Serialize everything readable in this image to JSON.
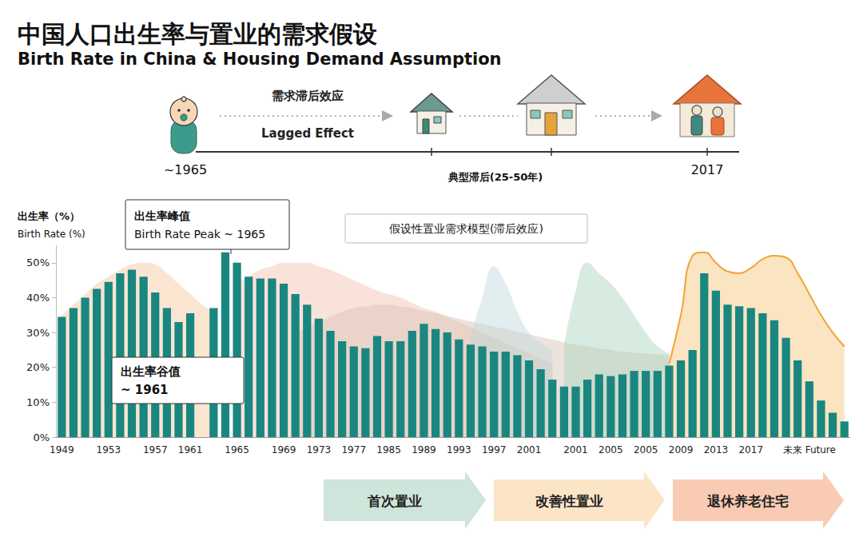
{
  "chart_data": {
    "type": "bar",
    "title": "中国人口出生率与置业的需求假设",
    "subtitle": "Birth Rate in China & Housing Demand Assumption",
    "ylabel": [
      "出生率（%）",
      "Birth Rate (%)"
    ],
    "categories": [
      "1949",
      null,
      null,
      null,
      "1953",
      null,
      null,
      null,
      "1957",
      null,
      null,
      "1961",
      null,
      null,
      null,
      "1965",
      null,
      null,
      null,
      "1969",
      null,
      null,
      "1973",
      null,
      null,
      "1977",
      null,
      null,
      "1985",
      null,
      null,
      "1989",
      null,
      null,
      "1993",
      null,
      null,
      "1997",
      null,
      null,
      "2001",
      null,
      null,
      null,
      "2001",
      null,
      null,
      "2005",
      null,
      null,
      "2005",
      null,
      null,
      "2009",
      null,
      null,
      "2013",
      null,
      null,
      "2017",
      null,
      null,
      null,
      null,
      "未来 Future",
      null,
      null,
      null
    ],
    "series": [
      {
        "type": "area",
        "color": "#f3c69a",
        "line_style": "none",
        "values": [
          35,
          38,
          41,
          44,
          46,
          48,
          49.5,
          50,
          49.5,
          47,
          44,
          41,
          38,
          36,
          null,
          null,
          null,
          null,
          null,
          null,
          null,
          null,
          null,
          null,
          null,
          null,
          null,
          null,
          null,
          null,
          null,
          null,
          null,
          null,
          null,
          null,
          null,
          null,
          null,
          null,
          null,
          null,
          null,
          null,
          null,
          null,
          null,
          null,
          null,
          null,
          null,
          null,
          null,
          null,
          null,
          null,
          null,
          null,
          null,
          null,
          null,
          null,
          null,
          null,
          null,
          null,
          null,
          null
        ]
      },
      {
        "type": "area",
        "color": "#f2bfae",
        "line_style": "none",
        "values": [
          null,
          null,
          null,
          null,
          null,
          null,
          null,
          null,
          null,
          null,
          null,
          null,
          null,
          null,
          null,
          44,
          46,
          48,
          49,
          50,
          50,
          50,
          49,
          48,
          46.5,
          45,
          43.5,
          42,
          41,
          40,
          38.5,
          37,
          36,
          34.5,
          33,
          31.5,
          30,
          28.5,
          27,
          25.5,
          24,
          22.5,
          21,
          null,
          null,
          null,
          null,
          null,
          null,
          null,
          null,
          null,
          null,
          null,
          null,
          null,
          null,
          null,
          null,
          null,
          null,
          null,
          null,
          null,
          null,
          null,
          null,
          null
        ]
      },
      {
        "type": "area",
        "color": "#d7c0b4",
        "line_style": "none",
        "values": [
          null,
          null,
          null,
          null,
          null,
          null,
          null,
          null,
          null,
          null,
          null,
          null,
          null,
          null,
          null,
          null,
          null,
          null,
          null,
          null,
          30,
          31.5,
          33,
          34.5,
          36,
          37,
          37.5,
          38,
          38,
          37.5,
          37,
          36.2,
          35.5,
          34.7,
          34,
          33.2,
          32.5,
          31.7,
          31,
          30.2,
          29.5,
          28.7,
          28,
          27.2,
          26.5,
          26,
          25.5,
          25,
          24.5,
          24.2,
          24,
          23.7,
          23.5,
          null,
          null,
          null,
          null,
          null,
          null,
          null,
          null,
          null,
          null,
          null,
          null,
          null,
          null,
          null
        ]
      },
      {
        "type": "area",
        "color": "#bcd6da",
        "line_style": "none",
        "values": [
          null,
          null,
          null,
          null,
          null,
          null,
          null,
          null,
          null,
          null,
          null,
          null,
          null,
          null,
          null,
          null,
          null,
          null,
          null,
          null,
          null,
          null,
          null,
          null,
          null,
          null,
          null,
          null,
          null,
          null,
          null,
          null,
          null,
          null,
          null,
          29,
          40,
          49,
          44,
          36,
          30,
          27,
          25,
          null,
          null,
          null,
          null,
          null,
          null,
          null,
          null,
          null,
          null,
          null,
          null,
          null,
          null,
          null,
          null,
          null,
          null,
          null,
          null,
          null,
          null,
          null,
          null,
          null
        ]
      },
      {
        "type": "area",
        "color": "#a9d3bb",
        "line_style": "none",
        "values": [
          null,
          null,
          null,
          null,
          null,
          null,
          null,
          null,
          null,
          null,
          null,
          null,
          null,
          null,
          null,
          null,
          null,
          null,
          null,
          null,
          null,
          null,
          null,
          null,
          null,
          null,
          null,
          null,
          null,
          null,
          null,
          null,
          null,
          null,
          null,
          null,
          null,
          null,
          null,
          null,
          null,
          null,
          null,
          26,
          42,
          50,
          47,
          44,
          40,
          35,
          30,
          26,
          24,
          null,
          null,
          null,
          null,
          null,
          null,
          null,
          null,
          null,
          null,
          null,
          null,
          null,
          null,
          null
        ]
      },
      {
        "type": "area",
        "color": "#f0a534",
        "line_style": "solid",
        "values": [
          null,
          null,
          null,
          null,
          null,
          null,
          null,
          null,
          null,
          null,
          null,
          null,
          null,
          null,
          null,
          null,
          null,
          null,
          null,
          null,
          null,
          null,
          null,
          null,
          null,
          null,
          null,
          null,
          null,
          null,
          null,
          null,
          null,
          null,
          null,
          null,
          null,
          null,
          null,
          null,
          null,
          null,
          null,
          null,
          null,
          null,
          null,
          null,
          null,
          null,
          null,
          null,
          21,
          35,
          52,
          53,
          50,
          47.5,
          47,
          48.5,
          51,
          52,
          51.5,
          47,
          41,
          35,
          30,
          26
        ]
      },
      {
        "type": "bar",
        "color": "#1a8680",
        "values": [
          34.5,
          37,
          40,
          42.5,
          44.5,
          47,
          48,
          46,
          41.5,
          37,
          33,
          35.5,
          null,
          37,
          53,
          50,
          46,
          45.5,
          45.5,
          44,
          41,
          38,
          34,
          30.5,
          27.5,
          26,
          25.5,
          29,
          27.5,
          27.5,
          30.5,
          32.5,
          31,
          30,
          28,
          26.5,
          26,
          24.5,
          24.5,
          23.5,
          22,
          19.5,
          16.5,
          14.5,
          14.5,
          16.5,
          18,
          17.5,
          18,
          19,
          19,
          19,
          20.5,
          22,
          25,
          47,
          42,
          38,
          37.5,
          37,
          35.5,
          33.5,
          28.5,
          22,
          16,
          10.5,
          7,
          4.5
        ]
      }
    ],
    "ylim": [
      0,
      55
    ],
    "yticks": [
      {
        "value": 0,
        "label": "0%"
      },
      {
        "value": 10,
        "label": "10%"
      },
      {
        "value": 20,
        "label": "20%"
      },
      {
        "value": 30,
        "label": "30%"
      },
      {
        "value": 40,
        "label": "40%"
      },
      {
        "value": 50,
        "label": "50%"
      }
    ],
    "grid": false,
    "annotations": [
      {
        "lines": [
          "出生率峰值",
          "Birth Rate Peak ~ 1965"
        ]
      },
      {
        "lines": [
          "出生率谷值",
          "~ 1961"
        ]
      },
      {
        "lines": [
          "假设性置业需求模型(滞后效应)"
        ]
      }
    ]
  },
  "timeline": {
    "effect": "需求滞后效应",
    "effect_en": "Lagged Effect",
    "start": "~1965",
    "middle": "典型滞后(25-50年)",
    "end": "2017"
  },
  "phases": [
    "首次置业",
    "改善性置业",
    "退休养老住宅"
  ]
}
